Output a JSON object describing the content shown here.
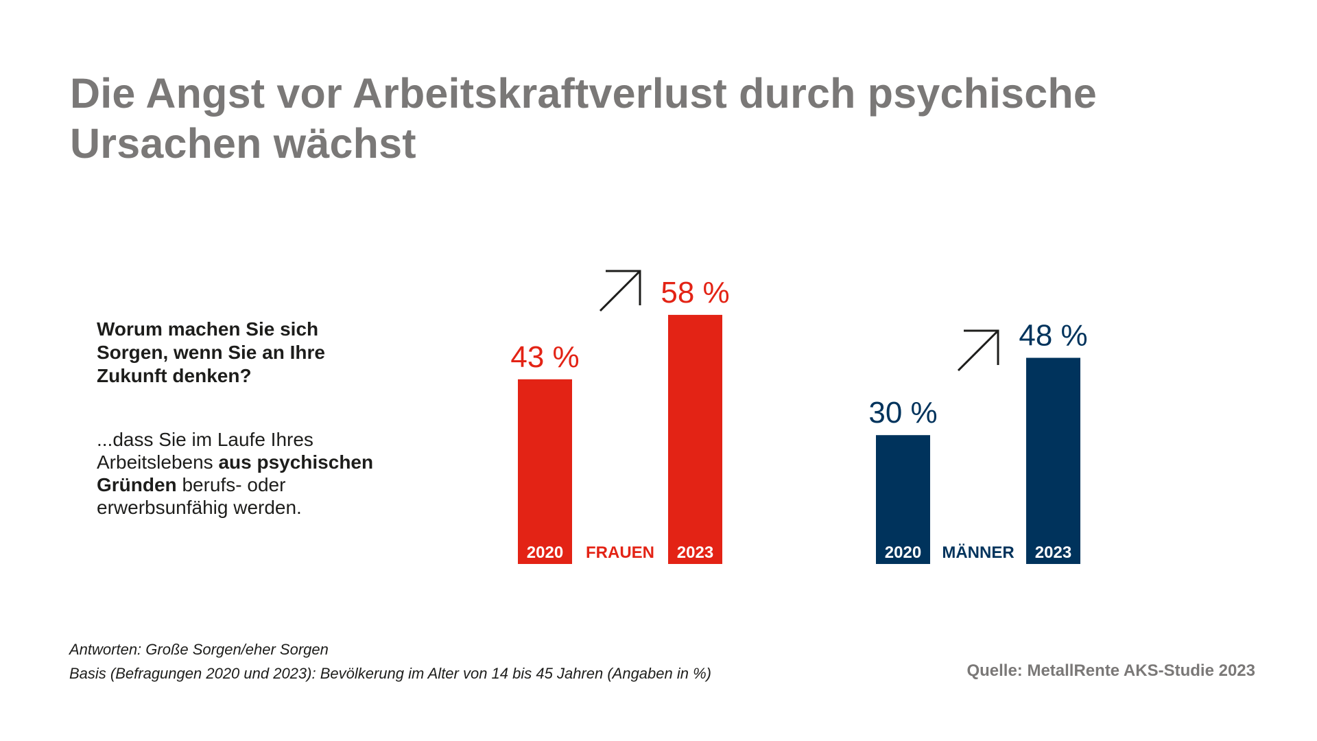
{
  "title": "Die Angst vor Arbeitskraftverlust durch psychische Ursachen wächst",
  "question": "Worum machen Sie sich Sorgen, wenn Sie an Ihre Zukunft denken?",
  "subtext": {
    "part1": "...dass Sie im Laufe Ihres Arbeitslebens ",
    "bold": "aus psychischen Gründen",
    "part2": " berufs- oder erwerbsunfähig werden."
  },
  "footnote_1": "Antworten: Große Sorgen/eher Sorgen",
  "footnote_2": "Basis (Befragungen 2020 und 2023): Bevölkerung im Alter von 14 bis 45 Jahren (Angaben in %)",
  "source": "Quelle: MetallRente AKS-Studie 2023",
  "colors": {
    "frauen": "#e32315",
    "maenner": "#00335c",
    "title": "#7a7877"
  },
  "icons": [
    "arrow-up-right-icon",
    "arrow-up-right-icon"
  ],
  "chart_data": {
    "type": "bar",
    "categories": [
      "2020",
      "2023"
    ],
    "series": [
      {
        "name": "FRAUEN",
        "values": [
          43,
          58
        ],
        "labels": [
          "43 %",
          "58 %"
        ],
        "color": "#e32315"
      },
      {
        "name": "MÄNNER",
        "values": [
          30,
          48
        ],
        "labels": [
          "30 %",
          "48 %"
        ],
        "color": "#00335c"
      }
    ],
    "ylim": [
      0,
      100
    ],
    "grid": false,
    "xlabel": "",
    "ylabel": ""
  }
}
